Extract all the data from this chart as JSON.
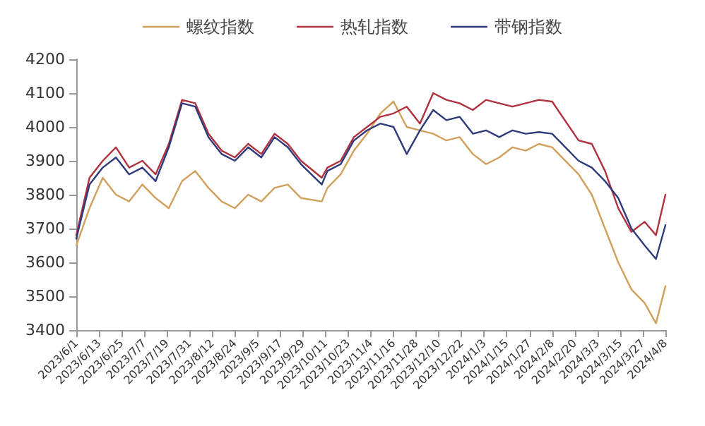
{
  "chart_data": {
    "type": "line",
    "x": [
      "2023-06-01",
      "2023-06-08",
      "2023-06-15",
      "2023-06-22",
      "2023-06-29",
      "2023-07-06",
      "2023-07-13",
      "2023-07-20",
      "2023-07-27",
      "2023-08-03",
      "2023-08-10",
      "2023-08-17",
      "2023-08-24",
      "2023-08-31",
      "2023-09-07",
      "2023-09-14",
      "2023-09-21",
      "2023-09-28",
      "2023-10-09",
      "2023-10-12",
      "2023-10-19",
      "2023-10-26",
      "2023-11-02",
      "2023-11-09",
      "2023-11-16",
      "2023-11-23",
      "2023-11-30",
      "2023-12-07",
      "2023-12-14",
      "2023-12-21",
      "2023-12-28",
      "2024-01-04",
      "2024-01-11",
      "2024-01-18",
      "2024-01-25",
      "2024-02-01",
      "2024-02-08",
      "2024-02-22",
      "2024-02-29",
      "2024-03-07",
      "2024-03-14",
      "2024-03-21",
      "2024-03-28",
      "2024-04-03",
      "2024-04-08"
    ],
    "series": [
      {
        "name": "螺纹指数",
        "color": "#d1a05c",
        "values": [
          3650,
          3760,
          3850,
          3800,
          3780,
          3830,
          3790,
          3760,
          3840,
          3870,
          3820,
          3780,
          3760,
          3800,
          3780,
          3820,
          3830,
          3790,
          3780,
          3820,
          3860,
          3930,
          3980,
          4040,
          4075,
          4000,
          3990,
          3980,
          3960,
          3970,
          3920,
          3890,
          3910,
          3940,
          3930,
          3950,
          3940,
          3860,
          3800,
          3700,
          3600,
          3520,
          3480,
          3420,
          3530
        ]
      },
      {
        "name": "热轧指数",
        "color": "#b0323f",
        "values": [
          3680,
          3850,
          3900,
          3940,
          3880,
          3900,
          3860,
          3950,
          4080,
          4070,
          3980,
          3930,
          3910,
          3950,
          3920,
          3980,
          3950,
          3900,
          3850,
          3880,
          3900,
          3970,
          4000,
          4030,
          4040,
          4060,
          4010,
          4100,
          4080,
          4070,
          4050,
          4080,
          4070,
          4060,
          4070,
          4080,
          4075,
          3960,
          3950,
          3870,
          3760,
          3690,
          3720,
          3680,
          3800
        ]
      },
      {
        "name": "带钢指数",
        "color": "#2e3a7c",
        "values": [
          3670,
          3830,
          3880,
          3910,
          3860,
          3880,
          3840,
          3940,
          4070,
          4060,
          3970,
          3920,
          3900,
          3940,
          3910,
          3970,
          3940,
          3890,
          3830,
          3870,
          3890,
          3960,
          3990,
          4010,
          4000,
          3920,
          3990,
          4050,
          4020,
          4030,
          3980,
          3990,
          3970,
          3990,
          3980,
          3985,
          3980,
          3900,
          3880,
          3840,
          3790,
          3700,
          3650,
          3610,
          3710
        ]
      }
    ],
    "xlim": [
      "2023-06-01",
      "2024-04-08"
    ],
    "xticks": [
      {
        "value": "2023-06-01",
        "label": "2023/6/1"
      },
      {
        "value": "2023-06-13",
        "label": "2023/6/13"
      },
      {
        "value": "2023-06-25",
        "label": "2023/6/25"
      },
      {
        "value": "2023-07-07",
        "label": "2023/7/7"
      },
      {
        "value": "2023-07-19",
        "label": "2023/7/19"
      },
      {
        "value": "2023-07-31",
        "label": "2023/7/31"
      },
      {
        "value": "2023-08-12",
        "label": "2023/8/12"
      },
      {
        "value": "2023-08-24",
        "label": "2023/8/24"
      },
      {
        "value": "2023-09-05",
        "label": "2023/9/5"
      },
      {
        "value": "2023-09-17",
        "label": "2023/9/17"
      },
      {
        "value": "2023-09-29",
        "label": "2023/9/29"
      },
      {
        "value": "2023-10-11",
        "label": "2023/10/11"
      },
      {
        "value": "2023-10-23",
        "label": "2023/10/23"
      },
      {
        "value": "2023-11-04",
        "label": "2023/11/4"
      },
      {
        "value": "2023-11-16",
        "label": "2023/11/16"
      },
      {
        "value": "2023-11-28",
        "label": "2023/11/28"
      },
      {
        "value": "2023-12-10",
        "label": "2023/12/10"
      },
      {
        "value": "2023-12-22",
        "label": "2023/12/22"
      },
      {
        "value": "2024-01-03",
        "label": "2024/1/3"
      },
      {
        "value": "2024-01-15",
        "label": "2024/1/15"
      },
      {
        "value": "2024-01-27",
        "label": "2024/1/27"
      },
      {
        "value": "2024-02-08",
        "label": "2024/2/8"
      },
      {
        "value": "2024-02-20",
        "label": "2024/2/20"
      },
      {
        "value": "2024-03-03",
        "label": "2024/3/3"
      },
      {
        "value": "2024-03-15",
        "label": "2024/3/15"
      },
      {
        "value": "2024-03-27",
        "label": "2024/3/27"
      },
      {
        "value": "2024-04-08",
        "label": "2024/4/8"
      }
    ],
    "ylim": [
      3400,
      4200
    ],
    "yticks": [
      3400,
      3500,
      3600,
      3700,
      3800,
      3900,
      4000,
      4100,
      4200
    ],
    "grid": false,
    "legend": "top",
    "marker": "none",
    "line_style": "solid"
  }
}
